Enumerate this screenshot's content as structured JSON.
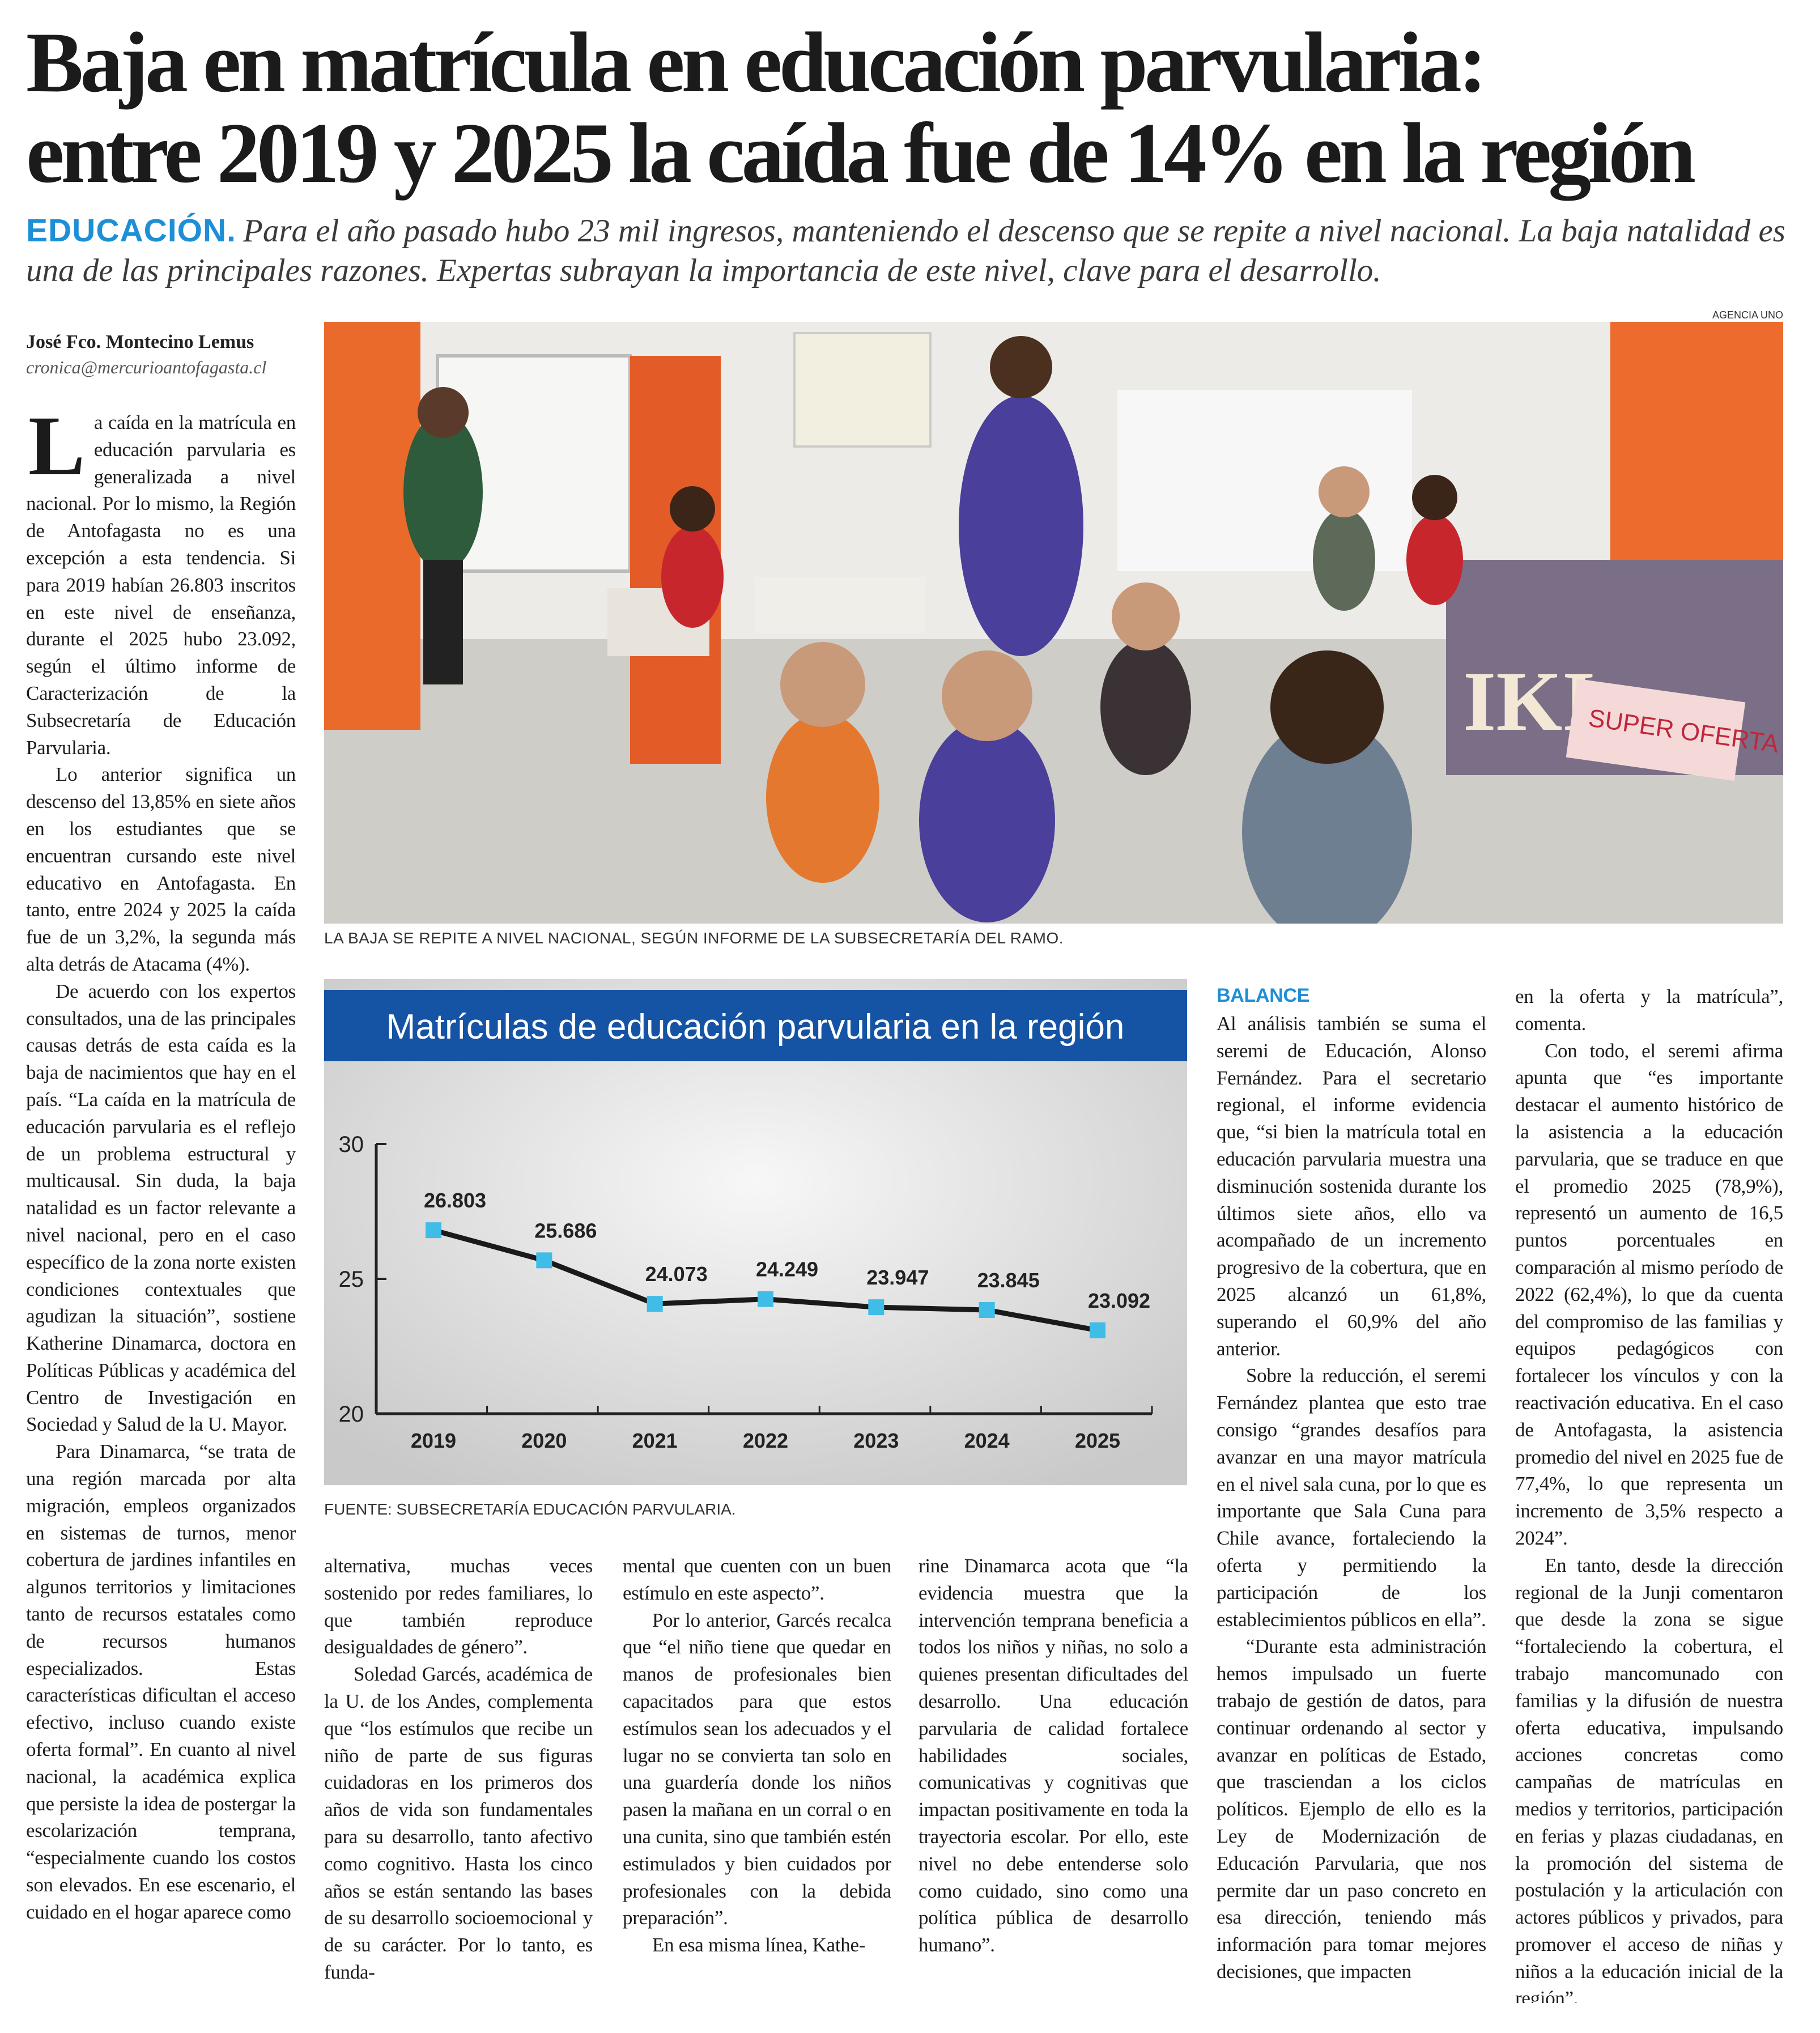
{
  "headline": {
    "line1": "Baja en matrícula en educación parvularia:",
    "line2": "entre 2019 y 2025 la caída fue de 14% en la región"
  },
  "deck": {
    "kicker": "EDUCACIÓN.",
    "text": "Para el año pasado hubo 23 mil ingresos, manteniendo el descenso que se repite a nivel nacional. La baja natalidad es una de las principales razones. Expertas subrayan la importancia de este nivel, clave para el desarrollo."
  },
  "byline": {
    "author": "José Fco. Montecino Lemus",
    "email": "cronica@mercurioantofagasta.cl"
  },
  "photo": {
    "credit": "AGENCIA UNO",
    "caption": "LA BAJA SE REPITE A NIVEL NACIONAL, SEGÚN INFORME DE LA SUBSECRETARÍA DEL RAMO.",
    "sign_text": "SUPER OFERTA",
    "table_text": "IKI"
  },
  "colors": {
    "accent_blue": "#1e8fd6",
    "chart_header": "#1553a4",
    "chart_marker": "#3fbde6"
  },
  "columns": {
    "col1": {
      "dropcap": "L",
      "p1": "a caída en la matrícula en educación parvularia es generalizada a nivel nacional. Por lo mismo, la Región de Antofagasta no es una excepción a esta tendencia. Si para 2019 habían 26.803 inscritos en este nivel de enseñanza, durante el 2025 hubo 23.092, según el último informe de Caracterización de la Subsecretaría de Educación Parvularia.",
      "p2": "Lo anterior significa un descenso del 13,85% en siete años en los estudiantes que se encuentran cursando este nivel educativo en Antofagasta. En tanto, entre 2024 y 2025 la caída fue de un 3,2%, la segunda más alta detrás de Atacama (4%).",
      "p3": "De acuerdo con los expertos consultados, una de las principales causas detrás de esta caída es la baja de nacimientos que hay en el país. “La caída en la matrícula de educación parvularia es el reflejo de un problema estructural y multicausal. Sin duda, la baja natalidad es un factor relevante a nivel nacional, pero en el caso específico de la zona norte existen condiciones contextuales que agudizan la situación”, sostiene Katherine Dinamarca, doctora en Políticas Públicas y académica del Centro de Investigación en Sociedad y Salud de la U. Mayor.",
      "p4": "Para Dinamarca, “se trata de una región marcada por alta migración, empleos organizados en sistemas de turnos, menor cobertura de jardines infantiles en algunos territorios y limitaciones tanto de recursos estatales como de recursos humanos especializados. Estas características dificultan el acceso efectivo, incluso cuando existe oferta formal”. En cuanto al nivel nacional, la académica explica que persiste la idea de postergar la escolarización temprana, “especialmente cuando los costos son elevados. En ese escenario, el cuidado en el hogar aparece como"
    },
    "col2": {
      "p1": "alternativa, muchas veces sostenido por redes familiares, lo que también reproduce desigualdades de género”.",
      "p2": "Soledad Garcés, académica de la U. de los Andes, complementa que “los estímulos que recibe un niño de parte de sus figuras cuidadoras en los primeros dos años de vida son fundamentales para su desarrollo, tanto afectivo como cognitivo. Hasta los cinco años se están sentando las bases de su desarrollo socioemocional y de su carácter. Por lo tanto, es funda-"
    },
    "col3": {
      "p1": "mental que cuenten con un buen estímulo en este aspecto”.",
      "p2": "Por lo anterior, Garcés recalca que “el niño tiene que quedar en manos de profesionales bien capacitados para que estos estímulos sean los adecuados y el lugar no se convierta tan solo en una guardería donde los niños pasen la mañana en un corral o en una cunita, sino que también estén estimulados y bien cuidados por profesionales con la debida preparación”.",
      "p3": "En esa misma línea, Kathe-"
    },
    "col4": {
      "p1": "rine Dinamarca acota que “la evidencia muestra que la intervención temprana beneficia a todos los niños y niñas, no solo a quienes presentan dificultades del desarrollo. Una educación parvularia de calidad fortalece habilidades sociales, comunicativas y cognitivas que impactan positivamente en toda la trayectoria escolar. Por ello, este nivel no debe entenderse solo como cuidado, sino como una política pública de desarrollo humano”."
    },
    "col5": {
      "subhead": "BALANCE",
      "p1": "Al análisis también se suma el seremi de Educación, Alonso Fernández. Para el secretario regional, el informe evidencia que, “si bien la matrícula total en educación parvularia muestra una disminución sostenida durante los últimos siete años, ello va acompañado de un incremento progresivo de la cobertura, que en 2025 alcanzó un 61,8%, superando el 60,9% del año anterior.",
      "p2": "Sobre la reducción, el seremi Fernández plantea que esto trae consigo “grandes desafíos para avanzar en una mayor matrícula en el nivel sala cuna, por lo que es importante que Sala Cuna para Chile avance, fortaleciendo la oferta y permitiendo la participación de los establecimientos públicos en ella”.",
      "p3": "“Durante esta administración hemos impulsado un fuerte trabajo de gestión de datos, para continuar ordenando al sector y avanzar en políticas de Estado, que trasciendan a los ciclos políticos. Ejemplo de ello es la Ley de Modernización de Educación Parvularia, que nos permite dar un paso concreto en esa dirección, teniendo más información para tomar mejores decisiones, que impacten"
    },
    "col6": {
      "p1": "en la oferta y la matrícula”, comenta.",
      "p2": "Con todo, el seremi afirma apunta que “es importante destacar el aumento histórico de la asistencia a la educación parvularia, que se traduce en que el promedio 2025 (78,9%), representó un aumento de 16,5 puntos porcentuales en comparación al mismo período de 2022 (62,4%), lo que da cuenta del compromiso de las familias y equipos pedagógicos con fortalecer los vínculos y con la reactivación educativa. En el caso de Antofagasta, la asistencia promedio del nivel en 2025 fue de 77,4%, lo que representa un incremento de 3,5% respecto a 2024”.",
      "p3": "En tanto, desde la dirección regional de la Junji comentaron que desde la zona se sigue “fortaleciendo la cobertura, el trabajo mancomunado con familias y la difusión de nuestra oferta educativa, impulsando acciones concretas como campañas de matrículas en medios y territorios, participación en ferias y plazas ciudadanas, en la promoción del sistema de postulación y la articulación con actores públicos y privados, para promover el acceso de niñas y niños a la educación inicial de la región”."
    }
  },
  "chart_data": {
    "type": "line",
    "title": "Matrículas de educación parvularia en la región",
    "categories": [
      "2019",
      "2020",
      "2021",
      "2022",
      "2023",
      "2024",
      "2025"
    ],
    "values": [
      26.803,
      25.686,
      24.073,
      24.249,
      23.947,
      23.845,
      23.092
    ],
    "data_labels": [
      "26.803",
      "25.686",
      "24.073",
      "24.249",
      "23.947",
      "23.845",
      "23.092"
    ],
    "yticks": [
      "30",
      "25",
      "20"
    ],
    "ylim": [
      20,
      30
    ],
    "xlabel": "",
    "ylabel": "",
    "grid": false,
    "source": "FUENTE: SUBSECRETARÍA EDUCACIÓN PARVULARIA."
  }
}
